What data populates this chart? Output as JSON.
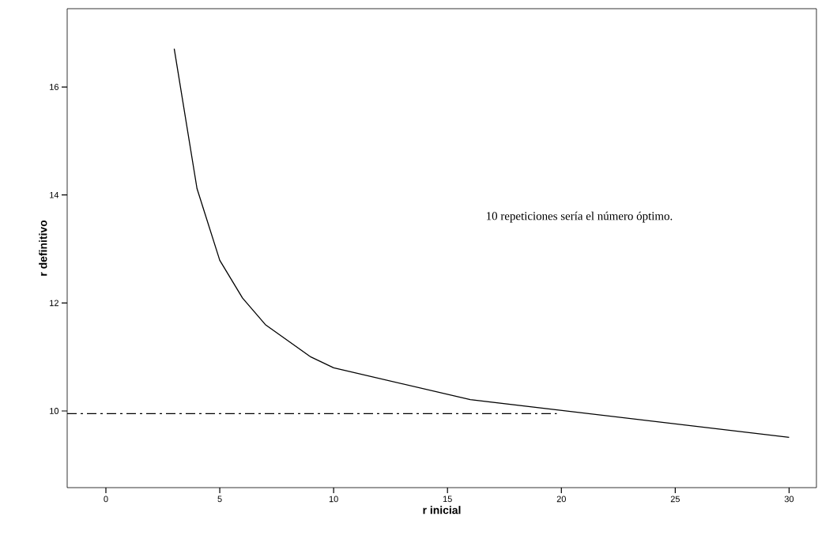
{
  "chart_data": {
    "type": "line",
    "xlabel": "r inicial",
    "ylabel": "r definitivo",
    "xlim": [
      -1.7,
      31.2
    ],
    "ylim": [
      8.58,
      17.45
    ],
    "xticks": [
      0,
      5,
      10,
      15,
      20,
      25,
      30
    ],
    "yticks": [
      10,
      12,
      14,
      16
    ],
    "series": [
      {
        "color": "#000000",
        "x": [
          3,
          4,
          5,
          6,
          7,
          9,
          10,
          16,
          30
        ],
        "values": [
          16.71,
          14.12,
          12.79,
          12.09,
          11.6,
          11.0,
          10.8,
          10.21,
          9.51
        ]
      },
      {
        "color": "#000000",
        "line_style": "dashdot",
        "x": [
          -1.7,
          19.8
        ],
        "values": [
          9.95,
          9.95
        ]
      }
    ],
    "annotations": [
      "10 repeticiones sería el número óptimo."
    ],
    "grid": false,
    "marker": "none"
  }
}
